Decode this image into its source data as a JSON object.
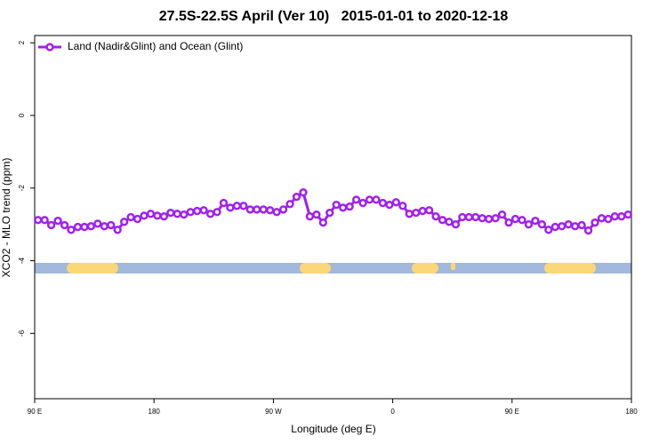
{
  "chart_data": {
    "type": "line",
    "title": "27.5S-22.5S April (Ver 10)   2015-01-01 to 2020-12-18",
    "xlabel": "Longitude (deg E)",
    "ylabel": "XCO2 - MLO trend (ppm)",
    "xlim": [
      90,
      540
    ],
    "ylim": [
      -7.8,
      2.2
    ],
    "xticks": [
      {
        "value": 90,
        "label": "90 E"
      },
      180,
      {
        "value": 270,
        "label": "90 W"
      },
      {
        "value": 360,
        "label": "0"
      },
      {
        "value": 450,
        "label": "90 E"
      },
      {
        "value": 540,
        "label": "180"
      }
    ],
    "yticks": [
      2,
      0,
      -2,
      -4,
      -6
    ],
    "legend": "top-left",
    "x": [
      92.5,
      97.5,
      102.5,
      107.5,
      112.5,
      117.5,
      122.5,
      127.5,
      132.5,
      137.5,
      142.5,
      147.5,
      152.5,
      157.5,
      162.5,
      167.5,
      172.5,
      177.5,
      182.5,
      187.5,
      192.5,
      197.5,
      202.5,
      207.5,
      212.5,
      217.5,
      222.5,
      227.5,
      232.5,
      237.5,
      242.5,
      247.5,
      252.5,
      257.5,
      262.5,
      267.5,
      272.5,
      277.5,
      282.5,
      287.5,
      292.5,
      297.5,
      302.5,
      307.5,
      312.5,
      317.5,
      322.5,
      327.5,
      332.5,
      337.5,
      342.5,
      347.5,
      352.5,
      357.5,
      362.5,
      367.5,
      372.5,
      377.5,
      382.5,
      387.5,
      392.5,
      397.5,
      402.5,
      407.5,
      412.5,
      417.5,
      422.5,
      427.5,
      432.5,
      437.5,
      442.5,
      447.5,
      452.5,
      457.5,
      462.5,
      467.5,
      472.5,
      477.5,
      482.5,
      487.5,
      492.5,
      497.5,
      502.5,
      507.5,
      512.5,
      517.5,
      522.5,
      527.5,
      532.5,
      537.5
    ],
    "series": [
      {
        "name": "Land (Nadir&Glint) and Ocean (Glint)",
        "color": "#a020f0",
        "values": [
          -2.88,
          -2.88,
          -3.02,
          -2.9,
          -3.02,
          -3.15,
          -3.07,
          -3.07,
          -3.05,
          -2.98,
          -3.05,
          -3.02,
          -3.15,
          -2.93,
          -2.8,
          -2.85,
          -2.76,
          -2.71,
          -2.76,
          -2.78,
          -2.68,
          -2.71,
          -2.73,
          -2.66,
          -2.63,
          -2.61,
          -2.71,
          -2.66,
          -2.41,
          -2.54,
          -2.49,
          -2.49,
          -2.59,
          -2.59,
          -2.59,
          -2.61,
          -2.66,
          -2.59,
          -2.44,
          -2.24,
          -2.12,
          -2.78,
          -2.73,
          -2.95,
          -2.68,
          -2.46,
          -2.54,
          -2.51,
          -2.32,
          -2.41,
          -2.32,
          -2.32,
          -2.41,
          -2.46,
          -2.39,
          -2.49,
          -2.71,
          -2.68,
          -2.63,
          -2.61,
          -2.78,
          -2.88,
          -2.93,
          -3.0,
          -2.8,
          -2.8,
          -2.8,
          -2.83,
          -2.85,
          -2.83,
          -2.73,
          -2.95,
          -2.85,
          -2.88,
          -3.0,
          -2.9,
          -3.0,
          -3.15,
          -3.07,
          -3.05,
          -3.0,
          -3.05,
          -3.02,
          -3.17,
          -2.95,
          -2.83,
          -2.85,
          -2.78,
          -2.78,
          -2.73
        ]
      }
    ]
  }
}
